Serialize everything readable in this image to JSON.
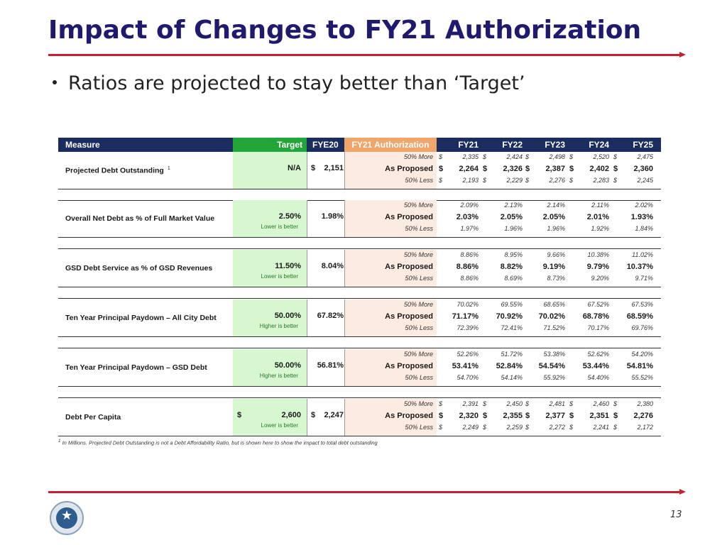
{
  "title": "Impact of Changes to FY21 Authorization",
  "bullet": "Ratios are projected to stay better than ‘Target’",
  "table": {
    "headers": {
      "measure": "Measure",
      "target": "Target",
      "fye20": "FYE20",
      "auth": "FY21 Authorization",
      "years": [
        "FY21",
        "FY22",
        "FY23",
        "FY24",
        "FY25"
      ]
    },
    "rows": [
      {
        "label": "Projected Debt Outstanding",
        "sup": "1",
        "target": "N/A",
        "target_note": "",
        "fye20_dollar": "$",
        "fye20": "2,151",
        "scenarios": [
          {
            "name": "50% More",
            "values": [
              "2,335",
              "2,424",
              "2,498",
              "2,520",
              "2,475"
            ]
          },
          {
            "name": "As Proposed",
            "values": [
              "2,264",
              "2,326",
              "2,387",
              "2,402",
              "2,360"
            ]
          },
          {
            "name": "50% Less",
            "values": [
              "2,193",
              "2,229",
              "2,276",
              "2,283",
              "2,245"
            ]
          }
        ],
        "dollars": true
      },
      {
        "label": "Overall Net Debt as % of Full Market Value",
        "sup": "",
        "target": "2.50%",
        "target_note": "Lower is better",
        "fye20_dollar": "",
        "fye20": "1.98%",
        "scenarios": [
          {
            "name": "50% More",
            "values": [
              "2.09%",
              "2.13%",
              "2.14%",
              "2.11%",
              "2.02%"
            ]
          },
          {
            "name": "As Proposed",
            "values": [
              "2.03%",
              "2.05%",
              "2.05%",
              "2.01%",
              "1.93%"
            ]
          },
          {
            "name": "50% Less",
            "values": [
              "1.97%",
              "1.96%",
              "1.96%",
              "1.92%",
              "1.84%"
            ]
          }
        ],
        "dollars": false
      },
      {
        "label": "GSD Debt Service as % of GSD Revenues",
        "sup": "",
        "target": "11.50%",
        "target_note": "Lower is better",
        "fye20_dollar": "",
        "fye20": "8.04%",
        "scenarios": [
          {
            "name": "50% More",
            "values": [
              "8.86%",
              "8.95%",
              "9.66%",
              "10.38%",
              "11.02%"
            ]
          },
          {
            "name": "As Proposed",
            "values": [
              "8.86%",
              "8.82%",
              "9.19%",
              "9.79%",
              "10.37%"
            ]
          },
          {
            "name": "50% Less",
            "values": [
              "8.86%",
              "8.69%",
              "8.73%",
              "9.20%",
              "9.71%"
            ]
          }
        ],
        "dollars": false
      },
      {
        "label": "Ten Year Principal Paydown – All City Debt",
        "sup": "",
        "target": "50.00%",
        "target_note": "Higher is better",
        "fye20_dollar": "",
        "fye20": "67.82%",
        "scenarios": [
          {
            "name": "50% More",
            "values": [
              "70.02%",
              "69.55%",
              "68.65%",
              "67.52%",
              "67.53%"
            ]
          },
          {
            "name": "As Proposed",
            "values": [
              "71.17%",
              "70.92%",
              "70.02%",
              "68.78%",
              "68.59%"
            ]
          },
          {
            "name": "50% Less",
            "values": [
              "72.39%",
              "72.41%",
              "71.52%",
              "70.17%",
              "69.76%"
            ]
          }
        ],
        "dollars": false
      },
      {
        "label": "Ten Year Principal Paydown – GSD Debt",
        "sup": "",
        "target": "50.00%",
        "target_note": "Higher is better",
        "fye20_dollar": "",
        "fye20": "56.81%",
        "scenarios": [
          {
            "name": "50% More",
            "values": [
              "52.26%",
              "51.72%",
              "53.38%",
              "52.62%",
              "54.20%"
            ]
          },
          {
            "name": "As Proposed",
            "values": [
              "53.41%",
              "52.84%",
              "54.54%",
              "53.44%",
              "54.81%"
            ]
          },
          {
            "name": "50% Less",
            "values": [
              "54.70%",
              "54.14%",
              "55.92%",
              "54.40%",
              "55.52%"
            ]
          }
        ],
        "dollars": false
      },
      {
        "label": "Debt Per Capita",
        "sup": "",
        "target": "2,600",
        "target_dollar": "$",
        "target_note": "Lower is better",
        "fye20_dollar": "$",
        "fye20": "2,247",
        "scenarios": [
          {
            "name": "50% More",
            "values": [
              "2,391",
              "2,450",
              "2,481",
              "2,460",
              "2,380"
            ]
          },
          {
            "name": "As Proposed",
            "values": [
              "2,320",
              "2,355",
              "2,377",
              "2,351",
              "2,276"
            ]
          },
          {
            "name": "50% Less",
            "values": [
              "2,249",
              "2,259",
              "2,272",
              "2,241",
              "2,172"
            ]
          }
        ],
        "dollars": true
      }
    ],
    "dollar_sign": "$",
    "footnote_sup": "1",
    "footnote": "In Millions.  Projected Debt Outstanding is not a Debt Affordability Ratio, but is shown here to show the impact to total debt outstanding"
  },
  "page_number": "13",
  "colors": {
    "title": "#1f1a6e",
    "rule": "#c8202f",
    "header_bg": "#1b2d5e",
    "target_header": "#22a63a",
    "auth_header": "#f0a56b",
    "target_col": "#d7f7d0",
    "auth_col": "#fcebe0"
  },
  "logo_icon": "city-seal-icon"
}
